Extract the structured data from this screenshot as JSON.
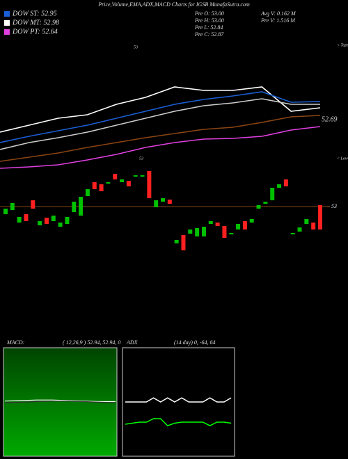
{
  "header": {
    "title": "Price,Volume,EMA,ADX,MACD Charts for IGSB MunafaSutra.com",
    "legend": [
      {
        "label": "DOW ST: 52.95",
        "color": "#1a5fd6"
      },
      {
        "label": "DOW MT: 52.98",
        "color": "#ffffff"
      },
      {
        "label": "DOW PT: 52.64",
        "color": "#e040e0"
      }
    ],
    "info_left": [
      "Pre  O: 53.00",
      "Pre  H: 53.00",
      "Pre  L: 52.84",
      "Pre  C: 52.87"
    ],
    "info_right": [
      "Avg V: 0.162  M",
      "Pre  V: 1.516  M"
    ]
  },
  "chart_data": [
    {
      "type": "line",
      "ylim": [
        52.495,
        52.995
      ],
      "end_label": "52.69",
      "annotations": [
        "53",
        "< Tops",
        "53",
        "< Lows"
      ],
      "series": [
        {
          "color": "#ffffff",
          "values": [
            52.67,
            52.695,
            52.72,
            52.7325,
            52.77,
            52.795,
            52.8325,
            52.82,
            52.82,
            52.8325,
            52.745,
            52.7575
          ]
        },
        {
          "color": "#1a5fd6",
          "values": [
            52.6325,
            52.655,
            52.675,
            52.695,
            52.72,
            52.745,
            52.77,
            52.7875,
            52.8,
            52.815,
            52.7775,
            52.78
          ]
        },
        {
          "color": "#cccccc",
          "values": [
            52.6075,
            52.6325,
            52.65,
            52.67,
            52.695,
            52.72,
            52.745,
            52.765,
            52.775,
            52.79,
            52.77,
            52.77
          ]
        },
        {
          "color": "#8b4513",
          "values": [
            52.565,
            52.58,
            52.595,
            52.615,
            52.6325,
            52.65,
            52.665,
            52.68,
            52.6875,
            52.705,
            52.725,
            52.73
          ]
        },
        {
          "color": "#e040e0",
          "values": [
            52.54,
            52.545,
            52.5525,
            52.57,
            52.59,
            52.615,
            52.6325,
            52.645,
            52.6475,
            52.655,
            52.6775,
            52.69
          ]
        }
      ]
    },
    {
      "type": "candlestick",
      "ylim": [
        52.8,
        53.4
      ],
      "yticks": [
        53
      ],
      "up_color": "#00c000",
      "down_color": "#ff2020",
      "open": [
        52.978,
        52.99,
        52.954,
        52.978,
        53.018,
        52.946,
        52.968,
        52.958,
        52.942,
        52.95,
        52.984,
        52.974,
        53.03,
        53.07,
        53.064,
        53.066,
        53.094,
        53.07,
        53.074,
        53.086,
        53.086,
        53.102,
        52.998,
        53.014,
        53.02,
        52.894,
        52.918,
        52.922,
        52.914,
        52.914,
        52.95,
        52.954,
        52.944,
        52.92,
        52.934,
        52.958,
        52.954,
        52.994,
        53.008,
        53.018,
        53.054,
        53.078,
        52.92,
        52.928,
        52.95,
        52.954,
        53.004
      ],
      "close": [
        52.994,
        53.01,
        52.97,
        52.958,
        52.994,
        52.958,
        52.95,
        52.974,
        52.954,
        52.97,
        53.014,
        53.028,
        53.05,
        53.05,
        53.044,
        53.07,
        53.078,
        53.078,
        53.058,
        53.09,
        53.09,
        53.024,
        53.018,
        53.024,
        53.008,
        52.904,
        52.874,
        52.934,
        52.938,
        52.942,
        52.958,
        52.944,
        52.91,
        52.924,
        52.95,
        52.934,
        52.964,
        53.004,
        53.014,
        53.054,
        53.064,
        53.058,
        52.924,
        52.94,
        52.964,
        52.934,
        52.934
      ]
    },
    {
      "type": "line",
      "title": "MACD:",
      "subtitle": "( 12,26,9 ) 52.94, 52.94, 0",
      "ylim": [
        -1,
        1
      ],
      "series": [
        {
          "color": "#ffffff",
          "values": [
            0.01,
            0.02,
            0.03,
            0.03,
            0.02,
            0.01,
            0.0,
            0.0
          ]
        },
        {
          "color": "#333333",
          "values": [
            -0.02,
            -0.01,
            0.0,
            0.01,
            0.01,
            0.0,
            -0.01,
            -0.02
          ]
        }
      ]
    },
    {
      "type": "line",
      "title": "ADX",
      "subtitle": "(14  day) 0,  -64,  64",
      "ylim": [
        0,
        100
      ],
      "series": [
        {
          "color": "#ffffff",
          "values": [
            49.7,
            49.7,
            49.7,
            49.7,
            53.5,
            49.7,
            53.5,
            49.7,
            53.5,
            49.7,
            49.7,
            49.7,
            53.5,
            49.7,
            49.7,
            53.5
          ]
        },
        {
          "color": "#00ff00",
          "values": [
            29,
            30,
            31,
            31,
            34.2,
            34.2,
            27.7,
            30,
            31,
            31,
            31,
            31,
            27.7,
            31,
            31,
            30
          ]
        }
      ]
    }
  ]
}
